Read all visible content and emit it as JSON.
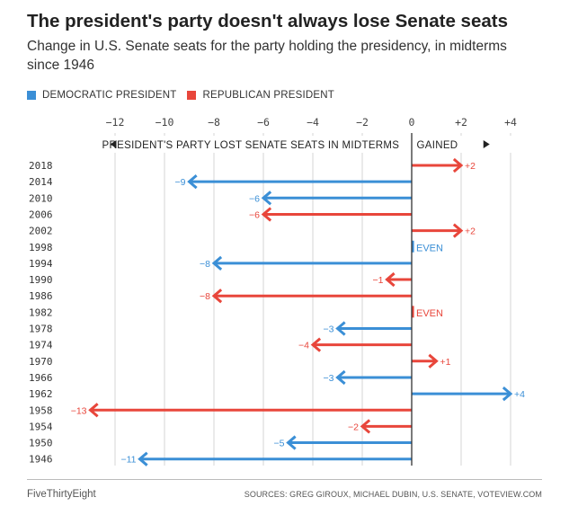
{
  "header": {
    "title": "The president's party doesn't always lose Senate seats",
    "subtitle": "Change in U.S. Senate seats for the party holding the presidency, in midterms since 1946"
  },
  "legend": {
    "democratic_label": "DEMOCRATIC PRESIDENT",
    "republican_label": "REPUBLICAN PRESIDENT"
  },
  "footer": {
    "brand": "FiveThirtyEight",
    "sources": "SOURCES: GREG GIROUX, MICHAEL DUBIN, U.S. SENATE, VOTEVIEW.COM"
  },
  "colors": {
    "democratic": "#3b8fd6",
    "republican": "#e8463b",
    "grid": "#d6d6d6",
    "axis": "#333333"
  },
  "chart_data": {
    "type": "bar",
    "orientation": "horizontal",
    "title": "The president's party doesn't always lose Senate seats",
    "xlim": [
      -13.5,
      4.5
    ],
    "xticks": [
      -12,
      -10,
      -8,
      -6,
      -4,
      -2,
      0,
      2,
      4
    ],
    "xtick_labels": [
      "−12",
      "−10",
      "−8",
      "−6",
      "−4",
      "−2",
      "0",
      "+2",
      "+4"
    ],
    "lost_label": "PRESIDENT'S PARTY LOST SENATE SEATS IN MIDTERMS",
    "gained_label": "GAINED",
    "series": [
      {
        "name": "DEMOCRATIC PRESIDENT",
        "key": "democratic"
      },
      {
        "name": "REPUBLICAN PRESIDENT",
        "key": "republican"
      }
    ],
    "rows": [
      {
        "year": "2018",
        "value": 2,
        "party": "republican",
        "label": "+2"
      },
      {
        "year": "2014",
        "value": -9,
        "party": "democratic",
        "label": "−9"
      },
      {
        "year": "2010",
        "value": -6,
        "party": "democratic",
        "label": "−6"
      },
      {
        "year": "2006",
        "value": -6,
        "party": "republican",
        "label": "−6"
      },
      {
        "year": "2002",
        "value": 2,
        "party": "republican",
        "label": "+2"
      },
      {
        "year": "1998",
        "value": 0,
        "party": "democratic",
        "label": "EVEN"
      },
      {
        "year": "1994",
        "value": -8,
        "party": "democratic",
        "label": "−8"
      },
      {
        "year": "1990",
        "value": -1,
        "party": "republican",
        "label": "−1"
      },
      {
        "year": "1986",
        "value": -8,
        "party": "republican",
        "label": "−8"
      },
      {
        "year": "1982",
        "value": 0,
        "party": "republican",
        "label": "EVEN"
      },
      {
        "year": "1978",
        "value": -3,
        "party": "democratic",
        "label": "−3"
      },
      {
        "year": "1974",
        "value": -4,
        "party": "republican",
        "label": "−4"
      },
      {
        "year": "1970",
        "value": 1,
        "party": "republican",
        "label": "+1"
      },
      {
        "year": "1966",
        "value": -3,
        "party": "democratic",
        "label": "−3"
      },
      {
        "year": "1962",
        "value": 4,
        "party": "democratic",
        "label": "+4"
      },
      {
        "year": "1958",
        "value": -13,
        "party": "republican",
        "label": "−13"
      },
      {
        "year": "1954",
        "value": -2,
        "party": "republican",
        "label": "−2"
      },
      {
        "year": "1950",
        "value": -5,
        "party": "democratic",
        "label": "−5"
      },
      {
        "year": "1946",
        "value": -11,
        "party": "democratic",
        "label": "−11"
      }
    ]
  }
}
